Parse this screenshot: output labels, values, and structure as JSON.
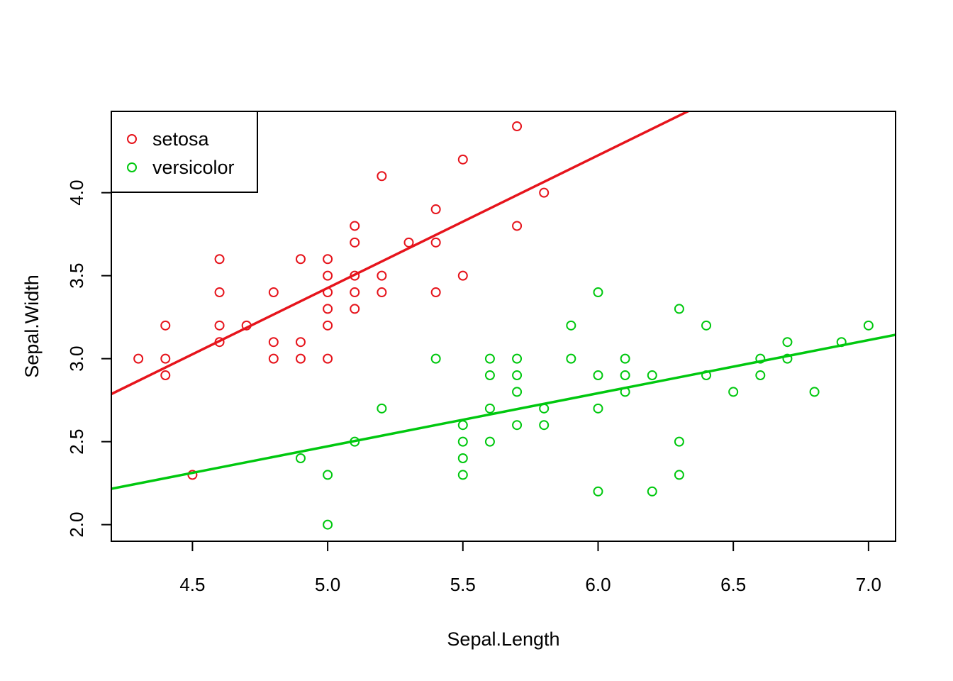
{
  "chart_data": {
    "type": "scatter",
    "title": "",
    "xlabel": "Sepal.Length",
    "ylabel": "Sepal.Width",
    "xlim": [
      4.2,
      7.1
    ],
    "ylim": [
      1.9,
      4.49
    ],
    "x_ticks": [
      4.5,
      5.0,
      5.5,
      6.0,
      6.5,
      7.0
    ],
    "x_tick_labels": [
      "4.5",
      "5.0",
      "5.5",
      "6.0",
      "6.5",
      "7.0"
    ],
    "y_ticks": [
      2.0,
      2.5,
      3.0,
      3.5,
      4.0
    ],
    "y_tick_labels": [
      "2.0",
      "2.5",
      "3.0",
      "3.5",
      "4.0"
    ],
    "grid": false,
    "legend_position": "top-left",
    "series": [
      {
        "name": "setosa",
        "color": "#e6141c",
        "marker": "open-circle",
        "points": [
          [
            4.3,
            3.0
          ],
          [
            4.4,
            3.2
          ],
          [
            4.4,
            3.0
          ],
          [
            4.4,
            2.9
          ],
          [
            4.5,
            2.3
          ],
          [
            4.6,
            3.6
          ],
          [
            4.6,
            3.4
          ],
          [
            4.6,
            3.2
          ],
          [
            4.6,
            3.1
          ],
          [
            4.7,
            3.2
          ],
          [
            4.8,
            3.4
          ],
          [
            4.8,
            3.1
          ],
          [
            4.8,
            3.0
          ],
          [
            4.9,
            3.6
          ],
          [
            4.9,
            3.1
          ],
          [
            4.9,
            3.0
          ],
          [
            5.0,
            3.6
          ],
          [
            5.0,
            3.5
          ],
          [
            5.0,
            3.4
          ],
          [
            5.0,
            3.3
          ],
          [
            5.0,
            3.2
          ],
          [
            5.0,
            3.0
          ],
          [
            5.1,
            3.8
          ],
          [
            5.1,
            3.7
          ],
          [
            5.1,
            3.5
          ],
          [
            5.1,
            3.4
          ],
          [
            5.1,
            3.3
          ],
          [
            5.2,
            4.1
          ],
          [
            5.2,
            3.5
          ],
          [
            5.2,
            3.4
          ],
          [
            5.3,
            3.7
          ],
          [
            5.4,
            3.9
          ],
          [
            5.4,
            3.7
          ],
          [
            5.4,
            3.4
          ],
          [
            5.5,
            4.2
          ],
          [
            5.5,
            3.5
          ],
          [
            5.7,
            4.4
          ],
          [
            5.7,
            3.8
          ],
          [
            5.8,
            4.0
          ]
        ],
        "fit_line": {
          "intercept": -0.569,
          "slope": 0.799
        }
      },
      {
        "name": "versicolor",
        "color": "#00c80f",
        "marker": "open-circle",
        "points": [
          [
            4.9,
            2.4
          ],
          [
            5.0,
            2.3
          ],
          [
            5.0,
            2.0
          ],
          [
            5.1,
            2.5
          ],
          [
            5.2,
            2.7
          ],
          [
            5.4,
            3.0
          ],
          [
            5.5,
            2.6
          ],
          [
            5.5,
            2.5
          ],
          [
            5.5,
            2.4
          ],
          [
            5.5,
            2.3
          ],
          [
            5.6,
            3.0
          ],
          [
            5.6,
            2.9
          ],
          [
            5.6,
            2.7
          ],
          [
            5.6,
            2.5
          ],
          [
            5.7,
            3.0
          ],
          [
            5.7,
            2.9
          ],
          [
            5.7,
            2.8
          ],
          [
            5.7,
            2.6
          ],
          [
            5.8,
            2.7
          ],
          [
            5.8,
            2.6
          ],
          [
            5.9,
            3.2
          ],
          [
            5.9,
            3.0
          ],
          [
            6.0,
            3.4
          ],
          [
            6.0,
            2.9
          ],
          [
            6.0,
            2.7
          ],
          [
            6.0,
            2.2
          ],
          [
            6.1,
            3.0
          ],
          [
            6.1,
            2.9
          ],
          [
            6.1,
            2.8
          ],
          [
            6.2,
            2.9
          ],
          [
            6.2,
            2.2
          ],
          [
            6.3,
            3.3
          ],
          [
            6.3,
            2.5
          ],
          [
            6.3,
            2.3
          ],
          [
            6.4,
            3.2
          ],
          [
            6.4,
            2.9
          ],
          [
            6.5,
            2.8
          ],
          [
            6.6,
            3.0
          ],
          [
            6.6,
            2.9
          ],
          [
            6.7,
            3.1
          ],
          [
            6.7,
            3.0
          ],
          [
            6.8,
            2.8
          ],
          [
            6.9,
            3.1
          ],
          [
            7.0,
            3.2
          ]
        ],
        "fit_line": {
          "intercept": 0.872,
          "slope": 0.32
        }
      }
    ]
  }
}
